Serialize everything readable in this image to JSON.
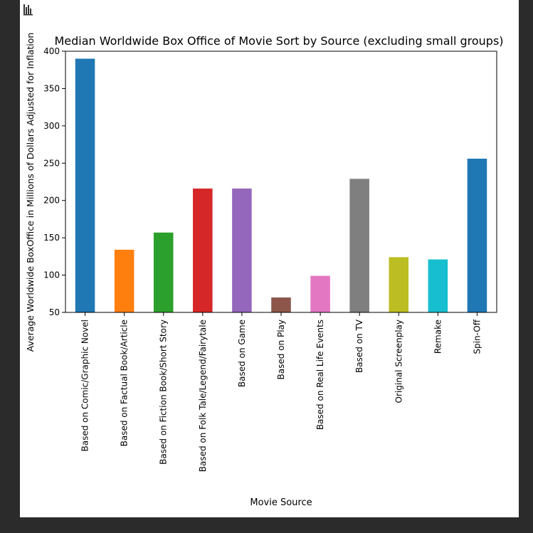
{
  "chart_data": {
    "type": "bar",
    "title": "Median Worldwide Box Office of Movie Sort by Source (excluding small groups)",
    "xlabel": "Movie Source",
    "ylabel": "Average Worldwide BoxOffice in Millions of Dollars Adjusted for Inflation",
    "ylim": [
      50,
      400
    ],
    "yticks": [
      50,
      100,
      150,
      200,
      250,
      300,
      350,
      400
    ],
    "grid": false,
    "categories": [
      "Based on Comic/Graphic Novel",
      "Based on Factual Book/Article",
      "Based on Fiction Book/Short Story",
      "Based on Folk Tale/Legend/Fairytale",
      "Based on Game",
      "Based on Play",
      "Based on Real Life Events",
      "Based on TV",
      "Original Screenplay",
      "Remake",
      "Spin-Off"
    ],
    "values": [
      390,
      134,
      157,
      216,
      216,
      70,
      99,
      229,
      124,
      121,
      256
    ],
    "colors": [
      "#1f77b4",
      "#ff7f0e",
      "#2ca02c",
      "#d62728",
      "#9467bd",
      "#8c564b",
      "#e377c2",
      "#7f7f7f",
      "#bcbd22",
      "#17becf",
      "#1f77b4"
    ]
  },
  "toolbar": {
    "icon": "bar-chart-icon"
  }
}
